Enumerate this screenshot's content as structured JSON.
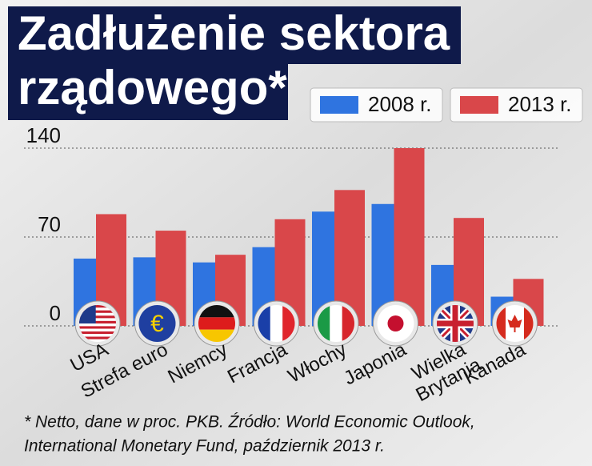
{
  "chart_data": {
    "type": "bar",
    "title": [
      "Zadłużenie sektora",
      "rządowego*"
    ],
    "categories": [
      "USA",
      "Strefa euro",
      "Niemcy",
      "Francja",
      "Włochy",
      "Japonia",
      "Wielka Brytania",
      "Kanada"
    ],
    "series": [
      {
        "name": "2008 r.",
        "color": "#2f74e0",
        "values": [
          53,
          54,
          50,
          62,
          90,
          96,
          48,
          23
        ]
      },
      {
        "name": "2013 r.",
        "color": "#d9474a",
        "values": [
          88,
          75,
          56,
          84,
          107,
          140,
          85,
          37
        ]
      }
    ],
    "ylim": [
      0,
      145
    ],
    "yticks": [
      0,
      70,
      140
    ],
    "grid": true,
    "note": [
      "* Netto, dane w proc. PKB. Źródło: World Economic Outlook,",
      "International Monetary Fund, październik 2013 r."
    ]
  }
}
